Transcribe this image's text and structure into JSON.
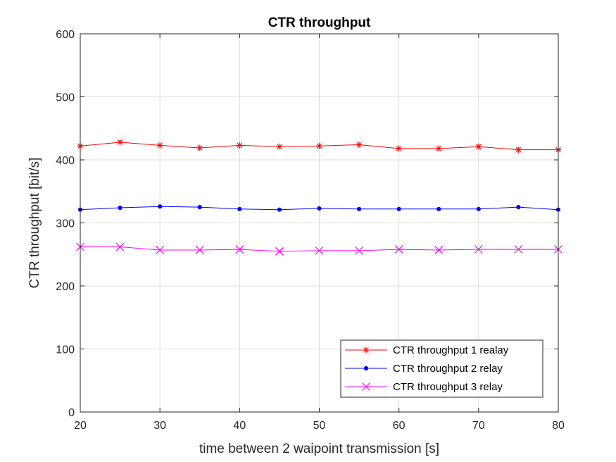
{
  "chart_data": {
    "type": "line",
    "title": "CTR throughput",
    "xlabel": "time between 2 waipoint transmission [s]",
    "ylabel": "CTR throughput [bit/s]",
    "xlim": [
      20,
      80
    ],
    "ylim": [
      0,
      600
    ],
    "xticks": [
      20,
      30,
      40,
      50,
      60,
      70,
      80
    ],
    "yticks": [
      0,
      100,
      200,
      300,
      400,
      500,
      600
    ],
    "grid": true,
    "legend_position": "bottom-right",
    "x": [
      20,
      25,
      30,
      35,
      40,
      45,
      50,
      55,
      60,
      65,
      70,
      75,
      80
    ],
    "series": [
      {
        "name": "CTR throughput 1 realay",
        "color": "#ff0000",
        "marker": "star",
        "values": [
          422,
          428,
          423,
          419,
          423,
          421,
          422,
          424,
          418,
          418,
          421,
          416,
          416
        ]
      },
      {
        "name": "CTR throughput 2 relay",
        "color": "#0000ff",
        "marker": "dot",
        "values": [
          321,
          324,
          326,
          325,
          322,
          321,
          323,
          322,
          322,
          322,
          322,
          325,
          321
        ]
      },
      {
        "name": "CTR throughput 3 relay",
        "color": "#ff00ff",
        "marker": "x",
        "values": [
          262,
          262,
          257,
          257,
          258,
          255,
          256,
          256,
          258,
          257,
          258,
          258,
          258
        ]
      }
    ]
  }
}
